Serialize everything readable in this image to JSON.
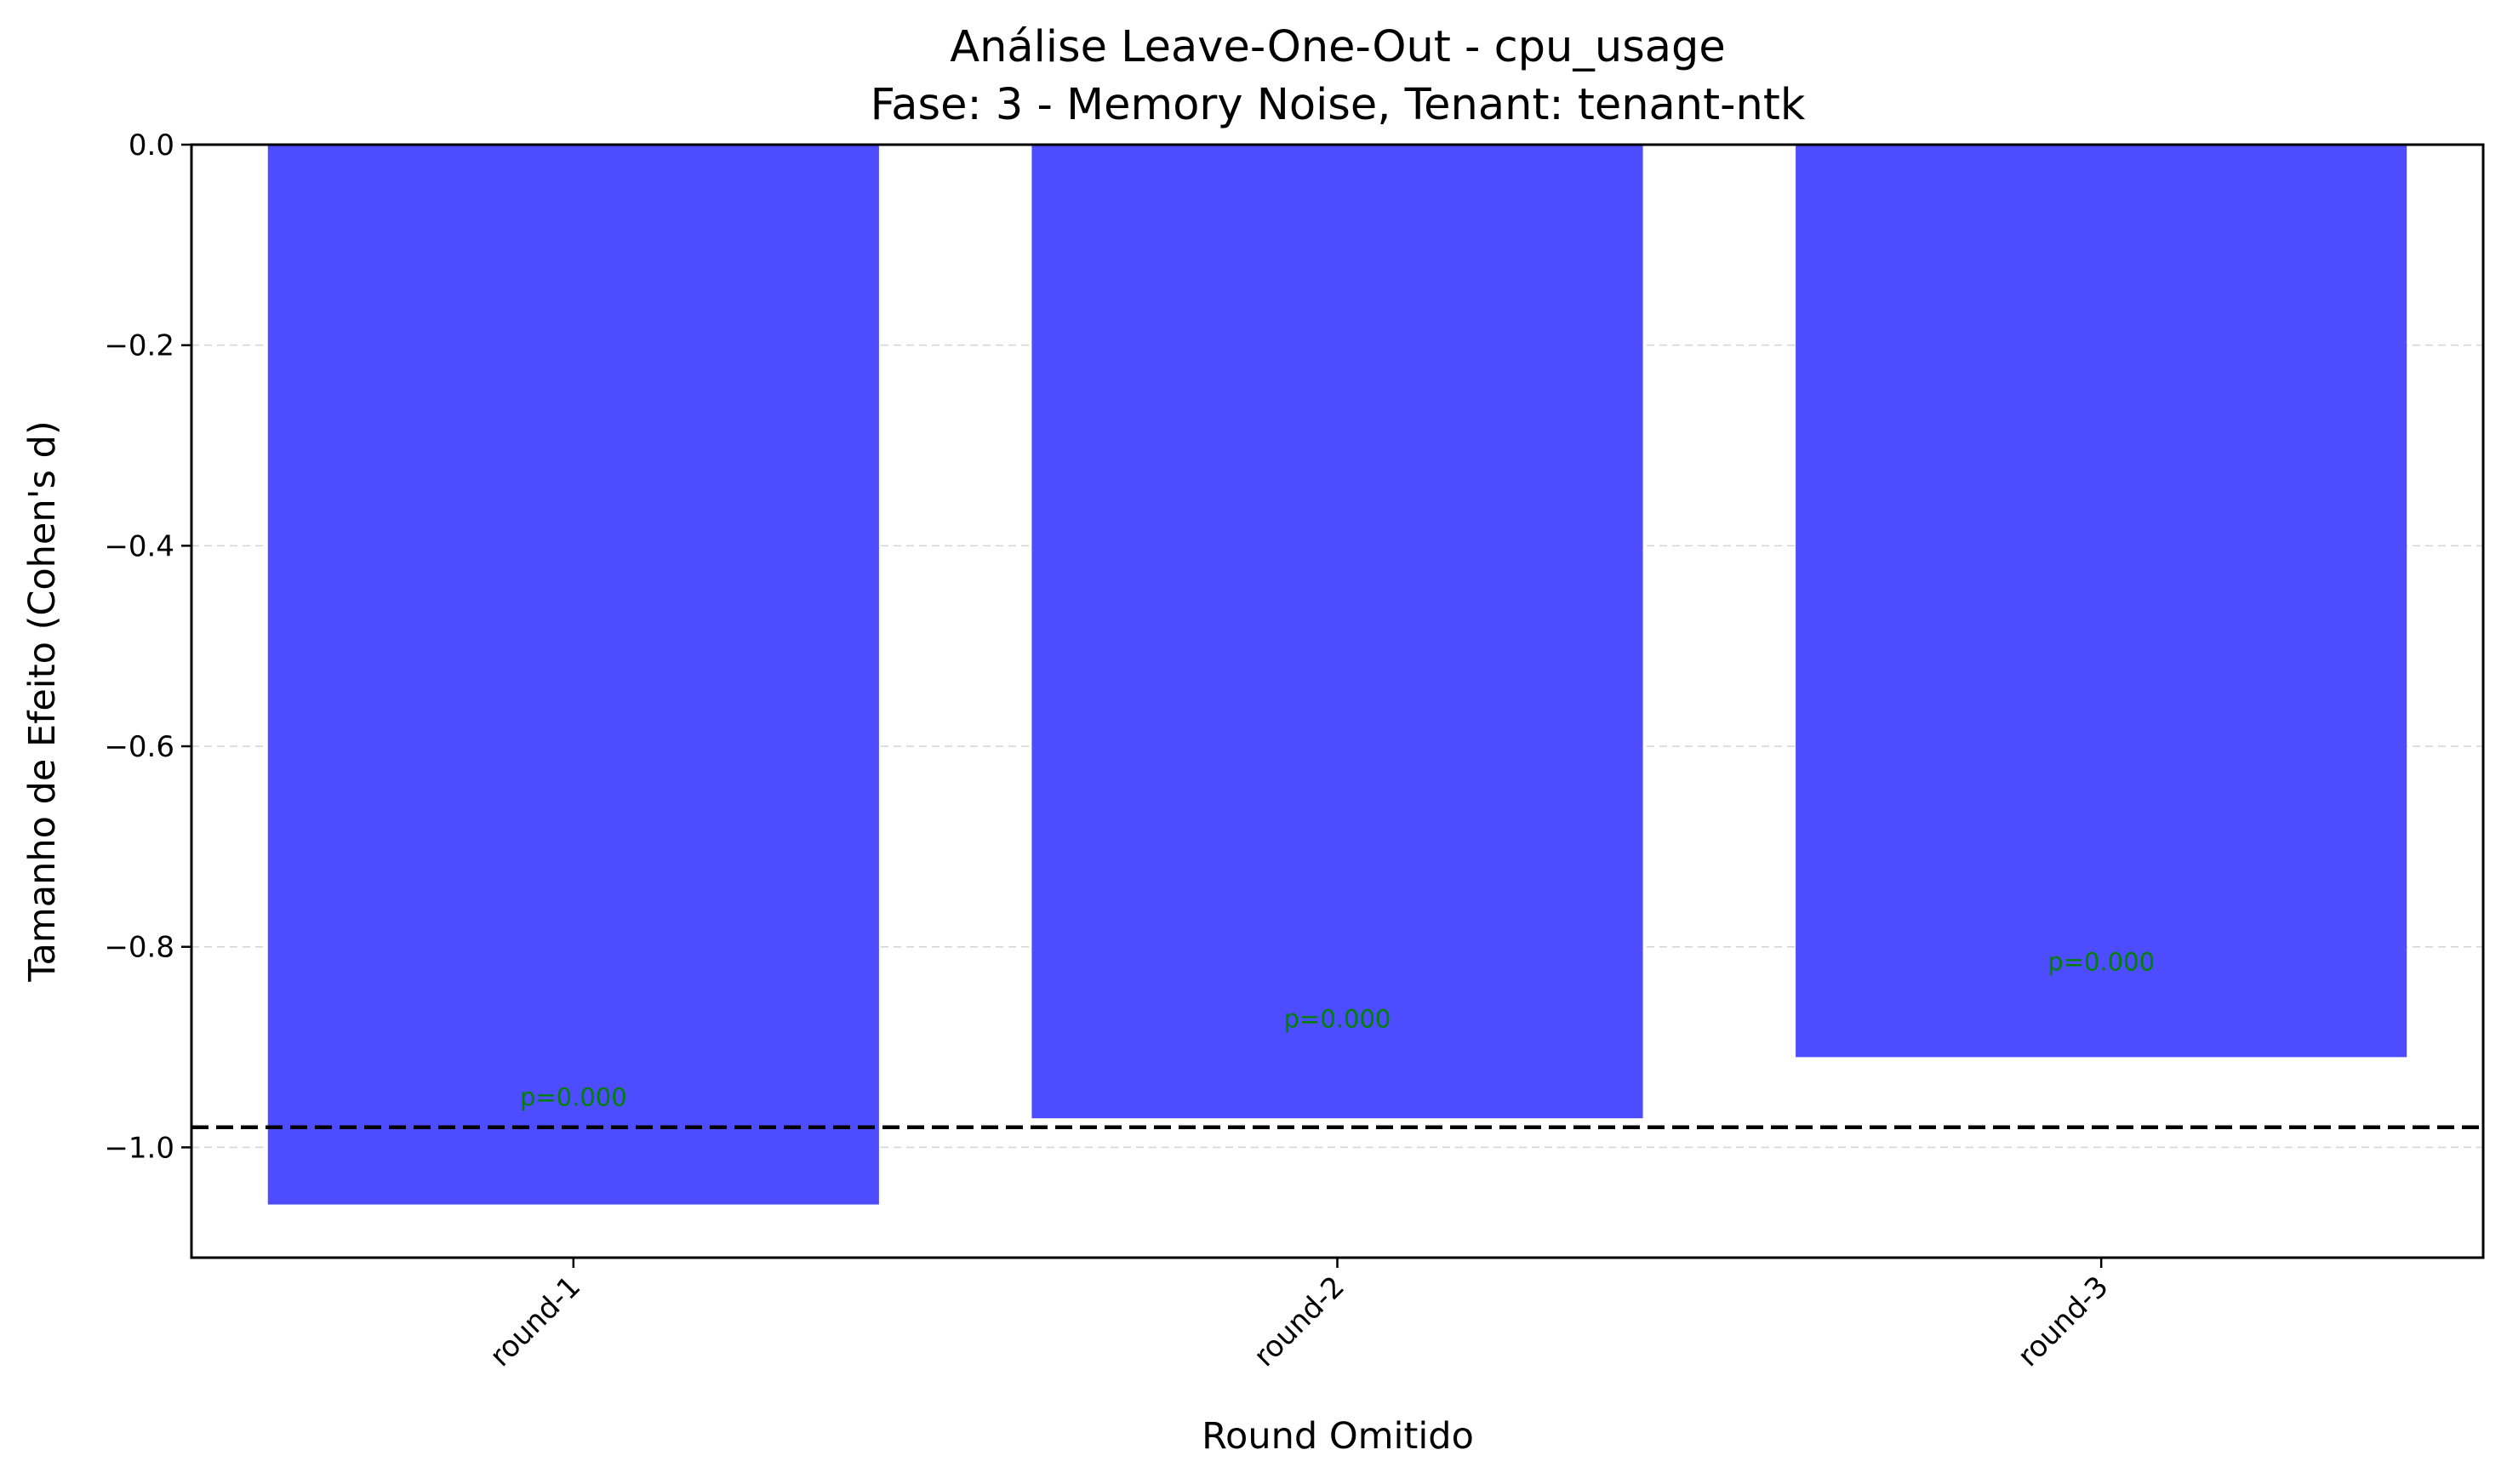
{
  "chart_data": {
    "type": "bar",
    "title": "Análise Leave-One-Out - cpu_usage",
    "subtitle": "Fase: 3 - Memory Noise, Tenant: tenant-ntk",
    "xlabel": "Round Omitido",
    "ylabel": "Tamanho de Efeito (Cohen's d)",
    "categories": [
      "round-1",
      "round-2",
      "round-3"
    ],
    "values": [
      -1.057,
      -0.971,
      -0.91
    ],
    "bar_labels": [
      "p=0.000",
      "p=0.000",
      "p=0.000"
    ],
    "bar_label_y": [
      -0.95,
      -0.872,
      -0.815
    ],
    "yticks": [
      0.0,
      -0.2,
      -0.4,
      -0.6,
      -0.8,
      -1.0
    ],
    "ytick_labels": [
      "0.0",
      "−0.2",
      "−0.4",
      "−0.6",
      "−0.8",
      "−1.0"
    ],
    "ylim": [
      -1.11,
      0.0
    ],
    "reference_line": -0.98,
    "grid": "horizontal dashed",
    "colors": {
      "bar": "#4d4dff",
      "pvalue": "#008000",
      "reference": "#000000",
      "grid": "#d3d3d3"
    }
  }
}
